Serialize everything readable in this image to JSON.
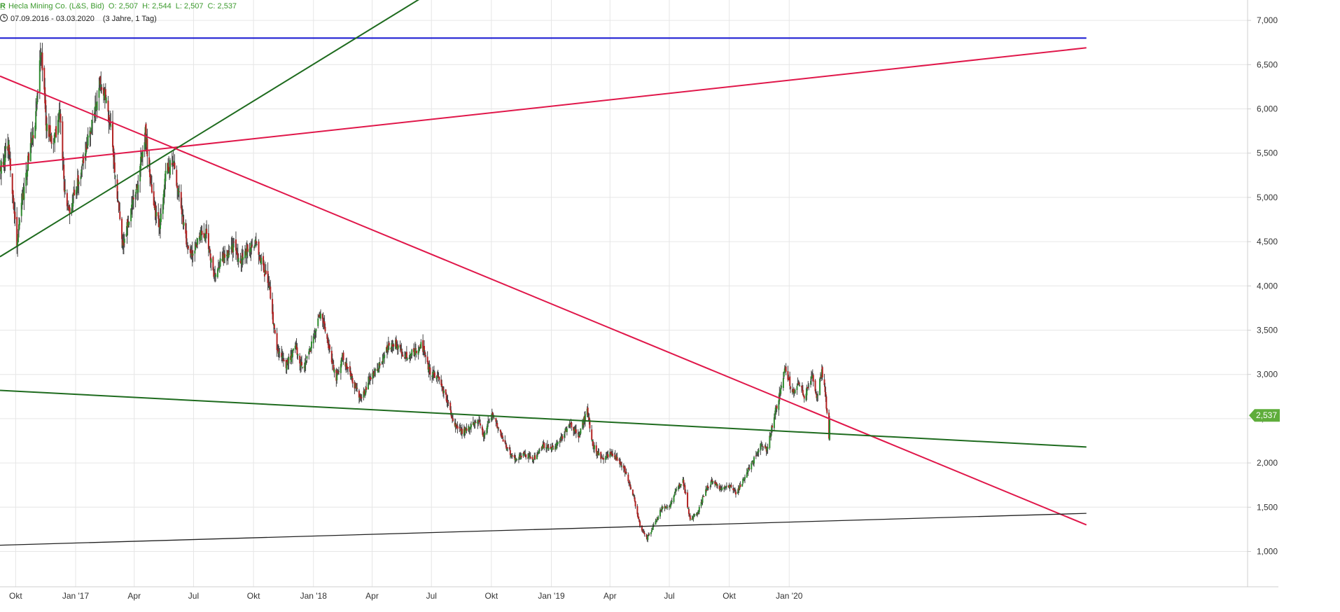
{
  "header": {
    "logo": "R̲",
    "instrument": "Hecla Mining Co. (L&S, Bid)",
    "ohlc": {
      "open": "O: 2,507",
      "high": "H: 2,544",
      "low": "L: 2,507",
      "close": "C: 2,537"
    },
    "range": "07.09.2016 - 03.03.2020",
    "period": "(3 Jahre, 1 Tag)"
  },
  "colors": {
    "up": "#2e8b2e",
    "down": "#b22222",
    "wick": "#444444",
    "grid": "#e6e6e6",
    "axis": "#cfcfcf",
    "axis_text": "#333333",
    "red_line": "#e0174a",
    "green_line": "#1e6b1e",
    "blue_line": "#1515d0",
    "black_line": "#222222",
    "badge": "#5fad3b",
    "badge_text": "#ffffff"
  },
  "chart_data": {
    "type": "candlestick",
    "x_range": [
      "2016-09-07",
      "2020-03-03"
    ],
    "ylim": [
      0.6,
      7.3
    ],
    "y_ticks": [
      {
        "value": 1.0,
        "label": "1,000"
      },
      {
        "value": 1.5,
        "label": "1,500"
      },
      {
        "value": 2.0,
        "label": "2,000"
      },
      {
        "value": 2.5,
        "label": "2,500"
      },
      {
        "value": 3.0,
        "label": "3,000"
      },
      {
        "value": 3.5,
        "label": "3,500"
      },
      {
        "value": 4.0,
        "label": "4,000"
      },
      {
        "value": 4.5,
        "label": "4,500"
      },
      {
        "value": 5.0,
        "label": "5,000"
      },
      {
        "value": 5.5,
        "label": "5,500"
      },
      {
        "value": 6.0,
        "label": "6,000"
      },
      {
        "value": 6.5,
        "label": "6,500"
      },
      {
        "value": 7.0,
        "label": "7,000"
      }
    ],
    "x_ticks": [
      {
        "date": "2016-10-01",
        "label": "Okt"
      },
      {
        "date": "2017-01-01",
        "label": "Jan '17"
      },
      {
        "date": "2017-04-01",
        "label": "Apr"
      },
      {
        "date": "2017-07-01",
        "label": "Jul"
      },
      {
        "date": "2017-10-01",
        "label": "Okt"
      },
      {
        "date": "2018-01-01",
        "label": "Jan '18"
      },
      {
        "date": "2018-04-01",
        "label": "Apr"
      },
      {
        "date": "2018-07-01",
        "label": "Jul"
      },
      {
        "date": "2018-10-01",
        "label": "Okt"
      },
      {
        "date": "2019-01-01",
        "label": "Jan '19"
      },
      {
        "date": "2019-04-01",
        "label": "Apr"
      },
      {
        "date": "2019-07-01",
        "label": "Jul"
      },
      {
        "date": "2019-10-01",
        "label": "Okt"
      },
      {
        "date": "2020-01-01",
        "label": "Jan '20"
      }
    ],
    "last_price": {
      "value": 2.537,
      "label": "2,537"
    },
    "price_path": [
      [
        "2016-09-07",
        5.3
      ],
      [
        "2016-09-20",
        5.6
      ],
      [
        "2016-10-03",
        4.5
      ],
      [
        "2016-10-10",
        4.9
      ],
      [
        "2016-10-20",
        5.4
      ],
      [
        "2016-11-01",
        5.9
      ],
      [
        "2016-11-09",
        6.7
      ],
      [
        "2016-11-17",
        5.8
      ],
      [
        "2016-11-28",
        5.6
      ],
      [
        "2016-12-08",
        6.0
      ],
      [
        "2016-12-15",
        5.1
      ],
      [
        "2016-12-22",
        4.85
      ],
      [
        "2017-01-10",
        5.3
      ],
      [
        "2017-01-25",
        5.8
      ],
      [
        "2017-02-08",
        6.3
      ],
      [
        "2017-02-15",
        6.2
      ],
      [
        "2017-02-24",
        5.8
      ],
      [
        "2017-03-05",
        5.1
      ],
      [
        "2017-03-14",
        4.45
      ],
      [
        "2017-03-25",
        4.8
      ],
      [
        "2017-04-05",
        5.1
      ],
      [
        "2017-04-18",
        5.75
      ],
      [
        "2017-04-28",
        5.0
      ],
      [
        "2017-05-10",
        4.65
      ],
      [
        "2017-05-20",
        5.3
      ],
      [
        "2017-05-30",
        5.4
      ],
      [
        "2017-06-10",
        5.0
      ],
      [
        "2017-06-20",
        4.5
      ],
      [
        "2017-06-28",
        4.35
      ],
      [
        "2017-07-10",
        4.55
      ],
      [
        "2017-07-20",
        4.6
      ],
      [
        "2017-08-01",
        4.15
      ],
      [
        "2017-08-15",
        4.3
      ],
      [
        "2017-09-01",
        4.45
      ],
      [
        "2017-09-10",
        4.25
      ],
      [
        "2017-09-20",
        4.4
      ],
      [
        "2017-10-03",
        4.5
      ],
      [
        "2017-10-12",
        4.3
      ],
      [
        "2017-10-25",
        4.0
      ],
      [
        "2017-11-05",
        3.3
      ],
      [
        "2017-11-20",
        3.1
      ],
      [
        "2017-12-05",
        3.3
      ],
      [
        "2017-12-15",
        3.05
      ],
      [
        "2018-01-01",
        3.4
      ],
      [
        "2018-01-10",
        3.7
      ],
      [
        "2018-01-22",
        3.4
      ],
      [
        "2018-02-05",
        2.95
      ],
      [
        "2018-02-15",
        3.2
      ],
      [
        "2018-03-01",
        2.95
      ],
      [
        "2018-03-15",
        2.7
      ],
      [
        "2018-03-28",
        2.95
      ],
      [
        "2018-04-12",
        3.1
      ],
      [
        "2018-04-25",
        3.3
      ],
      [
        "2018-05-08",
        3.35
      ],
      [
        "2018-05-20",
        3.2
      ],
      [
        "2018-06-05",
        3.25
      ],
      [
        "2018-06-15",
        3.35
      ],
      [
        "2018-06-28",
        3.05
      ],
      [
        "2018-07-12",
        2.95
      ],
      [
        "2018-07-25",
        2.7
      ],
      [
        "2018-08-05",
        2.45
      ],
      [
        "2018-08-17",
        2.35
      ],
      [
        "2018-08-28",
        2.4
      ],
      [
        "2018-09-10",
        2.5
      ],
      [
        "2018-09-20",
        2.3
      ],
      [
        "2018-10-01",
        2.55
      ],
      [
        "2018-10-10",
        2.4
      ],
      [
        "2018-10-22",
        2.2
      ],
      [
        "2018-11-05",
        2.05
      ],
      [
        "2018-11-20",
        2.1
      ],
      [
        "2018-12-05",
        2.05
      ],
      [
        "2018-12-20",
        2.2
      ],
      [
        "2019-01-05",
        2.15
      ],
      [
        "2019-01-18",
        2.3
      ],
      [
        "2019-01-30",
        2.45
      ],
      [
        "2019-02-12",
        2.3
      ],
      [
        "2019-02-25",
        2.6
      ],
      [
        "2019-03-06",
        2.2
      ],
      [
        "2019-03-18",
        2.05
      ],
      [
        "2019-04-01",
        2.1
      ],
      [
        "2019-04-12",
        2.05
      ],
      [
        "2019-04-25",
        1.9
      ],
      [
        "2019-05-08",
        1.6
      ],
      [
        "2019-05-18",
        1.25
      ],
      [
        "2019-05-28",
        1.15
      ],
      [
        "2019-06-08",
        1.3
      ],
      [
        "2019-06-20",
        1.5
      ],
      [
        "2019-07-01",
        1.5
      ],
      [
        "2019-07-12",
        1.7
      ],
      [
        "2019-07-22",
        1.8
      ],
      [
        "2019-08-02",
        1.35
      ],
      [
        "2019-08-14",
        1.45
      ],
      [
        "2019-08-26",
        1.7
      ],
      [
        "2019-09-06",
        1.8
      ],
      [
        "2019-09-18",
        1.7
      ],
      [
        "2019-10-01",
        1.75
      ],
      [
        "2019-10-12",
        1.65
      ],
      [
        "2019-10-25",
        1.85
      ],
      [
        "2019-11-05",
        2.0
      ],
      [
        "2019-11-18",
        2.2
      ],
      [
        "2019-11-28",
        2.15
      ],
      [
        "2019-12-08",
        2.5
      ],
      [
        "2019-12-18",
        2.8
      ],
      [
        "2019-12-26",
        3.1
      ],
      [
        "2020-01-05",
        2.8
      ],
      [
        "2020-01-15",
        2.9
      ],
      [
        "2020-01-25",
        2.75
      ],
      [
        "2020-02-05",
        3.0
      ],
      [
        "2020-02-12",
        2.7
      ],
      [
        "2020-02-20",
        3.05
      ],
      [
        "2020-02-26",
        2.75
      ],
      [
        "2020-03-02",
        2.25
      ],
      [
        "2020-03-03",
        2.537
      ]
    ],
    "trendlines": [
      {
        "color_key": "blue_line",
        "width": 2,
        "p1": [
          "2016-09-07",
          6.8
        ],
        "p2": [
          "2021-04-01",
          6.8
        ]
      },
      {
        "color_key": "red_line",
        "width": 2,
        "p1": [
          "2016-09-07",
          5.35
        ],
        "p2": [
          "2021-04-01",
          6.69
        ]
      },
      {
        "color_key": "green_line",
        "width": 2,
        "p1": [
          "2016-09-07",
          4.33
        ],
        "p2": [
          "2018-07-29",
          7.45
        ]
      },
      {
        "color_key": "red_line",
        "width": 2,
        "p1": [
          "2016-09-07",
          6.37
        ],
        "p2": [
          "2021-04-01",
          1.3
        ]
      },
      {
        "color_key": "green_line",
        "width": 2,
        "p1": [
          "2016-09-07",
          2.82
        ],
        "p2": [
          "2021-04-01",
          2.18
        ]
      },
      {
        "color_key": "black_line",
        "width": 1.3,
        "p1": [
          "2016-09-07",
          1.07
        ],
        "p2": [
          "2021-04-01",
          1.43
        ]
      }
    ]
  }
}
